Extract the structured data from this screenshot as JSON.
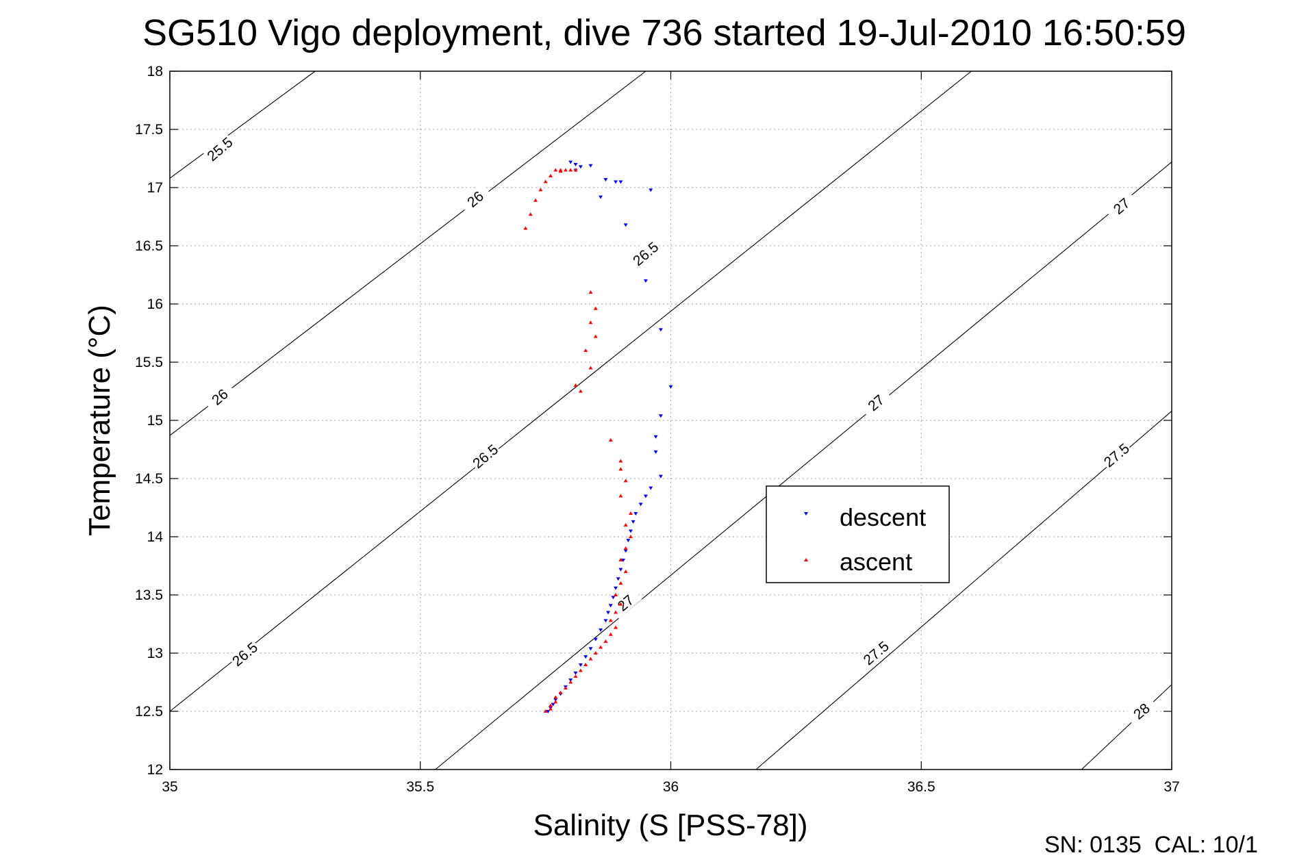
{
  "chart_data": {
    "type": "scatter",
    "title": "SG510 Vigo deployment, dive 736 started 19-Jul-2010 16:50:59",
    "xlabel": "Salinity (S [PSS-78])",
    "ylabel": "Temperature (°C)",
    "xlim": [
      35,
      37
    ],
    "ylim": [
      12,
      18
    ],
    "grid": true,
    "legend_position": "center-right",
    "x_ticks": [
      "35",
      "35.5",
      "36",
      "36.5",
      "37"
    ],
    "y_ticks": [
      "12",
      "12.5",
      "13",
      "13.5",
      "14",
      "14.5",
      "15",
      "15.5",
      "16",
      "16.5",
      "17",
      "17.5",
      "18"
    ],
    "footer": "SN: 0135  CAL: 10/1",
    "isopycnals": [
      {
        "level": 25.5,
        "points": [
          [
            35.0,
            17.08
          ],
          [
            35.29,
            18.0
          ]
        ]
      },
      {
        "level": 26.0,
        "points": [
          [
            35.0,
            14.87
          ],
          [
            35.95,
            18.0
          ]
        ]
      },
      {
        "level": 26.5,
        "points": [
          [
            35.0,
            12.5
          ],
          [
            36.6,
            18.0
          ]
        ]
      },
      {
        "level": 27.0,
        "points": [
          [
            35.53,
            12.0
          ],
          [
            37.0,
            17.22
          ]
        ]
      },
      {
        "level": 27.5,
        "points": [
          [
            36.17,
            12.0
          ],
          [
            37.0,
            15.08
          ]
        ]
      },
      {
        "level": 28.0,
        "points": [
          [
            36.82,
            12.0
          ],
          [
            37.0,
            12.73
          ]
        ]
      }
    ],
    "contour_labels": [
      {
        "text": "25.5",
        "x": 35.1,
        "y": 17.33
      },
      {
        "text": "26",
        "x": 35.61,
        "y": 16.9
      },
      {
        "text": "26",
        "x": 35.1,
        "y": 15.2
      },
      {
        "text": "26.5",
        "x": 35.95,
        "y": 16.43
      },
      {
        "text": "26.5",
        "x": 35.63,
        "y": 14.69
      },
      {
        "text": "26.5",
        "x": 35.15,
        "y": 12.99
      },
      {
        "text": "27",
        "x": 36.9,
        "y": 16.84
      },
      {
        "text": "27",
        "x": 36.41,
        "y": 15.15
      },
      {
        "text": "27",
        "x": 35.91,
        "y": 13.43
      },
      {
        "text": "27.5",
        "x": 36.89,
        "y": 14.7
      },
      {
        "text": "27.5",
        "x": 36.41,
        "y": 13.0
      },
      {
        "text": "28",
        "x": 36.94,
        "y": 12.5
      }
    ],
    "series": [
      {
        "name": "descent",
        "color": "#0000ff",
        "marker": "triangle-down",
        "x": [
          35.8,
          35.81,
          35.82,
          35.81,
          35.84,
          35.87,
          35.89,
          35.9,
          35.86,
          35.91,
          35.96,
          35.95,
          35.98,
          36.0,
          35.98,
          35.97,
          35.97,
          35.98,
          35.96,
          35.95,
          35.94,
          35.93,
          35.925,
          35.92,
          35.915,
          35.91,
          35.905,
          35.9,
          35.895,
          35.89,
          35.885,
          35.88,
          35.875,
          35.87,
          35.86,
          35.85,
          35.84,
          35.83,
          35.82,
          35.81,
          35.8,
          35.79,
          35.78,
          35.77,
          35.765,
          35.76,
          35.755
        ],
        "y": [
          17.22,
          17.2,
          17.18,
          17.15,
          17.19,
          17.07,
          17.05,
          17.05,
          16.92,
          16.68,
          16.98,
          16.2,
          15.78,
          15.29,
          15.04,
          14.86,
          14.73,
          14.52,
          14.42,
          14.35,
          14.28,
          14.2,
          14.13,
          14.05,
          13.97,
          13.88,
          13.8,
          13.72,
          13.64,
          13.56,
          13.48,
          13.41,
          13.35,
          13.28,
          13.2,
          13.12,
          13.04,
          12.97,
          12.9,
          12.83,
          12.77,
          12.71,
          12.65,
          12.6,
          12.56,
          12.53,
          12.5
        ]
      },
      {
        "name": "ascent",
        "color": "#ff0000",
        "marker": "triangle-up",
        "x": [
          35.71,
          35.72,
          35.73,
          35.74,
          35.75,
          35.76,
          35.77,
          35.78,
          35.79,
          35.8,
          35.81,
          35.78,
          35.84,
          35.85,
          35.84,
          35.85,
          35.83,
          35.84,
          35.82,
          35.81,
          35.88,
          35.9,
          35.9,
          35.91,
          35.9,
          35.92,
          35.91,
          35.92,
          35.91,
          35.9,
          35.91,
          35.9,
          35.89,
          35.9,
          35.89,
          35.88,
          35.89,
          35.88,
          35.87,
          35.86,
          35.85,
          35.84,
          35.83,
          35.82,
          35.81,
          35.8,
          35.79,
          35.78,
          35.77,
          35.77,
          35.76,
          35.76,
          35.75
        ],
        "y": [
          16.65,
          16.77,
          16.89,
          16.98,
          17.05,
          17.1,
          17.15,
          17.15,
          17.15,
          17.15,
          17.15,
          17.14,
          16.1,
          15.96,
          15.84,
          15.72,
          15.6,
          15.45,
          15.25,
          15.3,
          14.83,
          14.65,
          14.58,
          14.48,
          14.35,
          14.2,
          14.1,
          14.0,
          13.9,
          13.8,
          13.7,
          13.6,
          13.5,
          13.42,
          13.35,
          13.28,
          13.22,
          13.16,
          13.1,
          13.05,
          13.0,
          12.95,
          12.9,
          12.85,
          12.8,
          12.75,
          12.7,
          12.66,
          12.62,
          12.58,
          12.55,
          12.52,
          12.5
        ]
      }
    ]
  }
}
